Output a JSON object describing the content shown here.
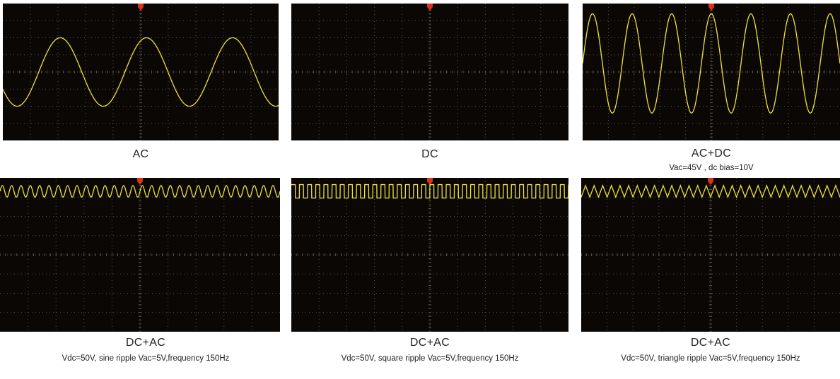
{
  "chart_data": [
    {
      "type": "line",
      "title": "AC",
      "subtitle": "",
      "waveform": "sine",
      "cycles": 3.2,
      "amplitude_div": 2.0,
      "offset_div": 0,
      "phase_deg": 210,
      "trace_color": "#f0e33a"
    },
    {
      "type": "line",
      "title": "DC",
      "subtitle": "",
      "waveform": "none",
      "trace_color": "#f0e33a"
    },
    {
      "type": "line",
      "title": "AC+DC",
      "subtitle": "Vac=45V , dc bias=10V",
      "waveform": "sine",
      "cycles": 6.5,
      "amplitude_div": 2.9,
      "offset_div": 0.5,
      "phase_deg": 0,
      "trace_color": "#f0e33a"
    },
    {
      "type": "line",
      "title": "DC+AC",
      "subtitle": "Vdc=50V, sine ripple Vac=5V,frequency 150Hz",
      "waveform": "sine",
      "cycles": 30,
      "amplitude_div": 0.3,
      "offset_div": 3.3,
      "phase_deg": 0,
      "trace_color": "#f0e33a"
    },
    {
      "type": "line",
      "title": "DC+AC",
      "subtitle": "Vdc=50V, square ripple Vac=5V,frequency 150Hz",
      "waveform": "square",
      "cycles": 34,
      "amplitude_div": 0.35,
      "offset_div": 3.3,
      "phase_deg": 0,
      "trace_color": "#f0e33a"
    },
    {
      "type": "line",
      "title": "DC+AC",
      "subtitle": "Vdc=50V, triangle ripple Vac=5V,frequency 150Hz",
      "waveform": "triangle",
      "cycles": 30,
      "amplitude_div": 0.3,
      "offset_div": 3.3,
      "phase_deg": 0,
      "trace_color": "#f0e33a"
    }
  ],
  "colors": {
    "screen_bg": "#0a0704",
    "grid": "#5a564c",
    "trace": "#f0e33a",
    "trigger_marker": "#e0301a"
  }
}
